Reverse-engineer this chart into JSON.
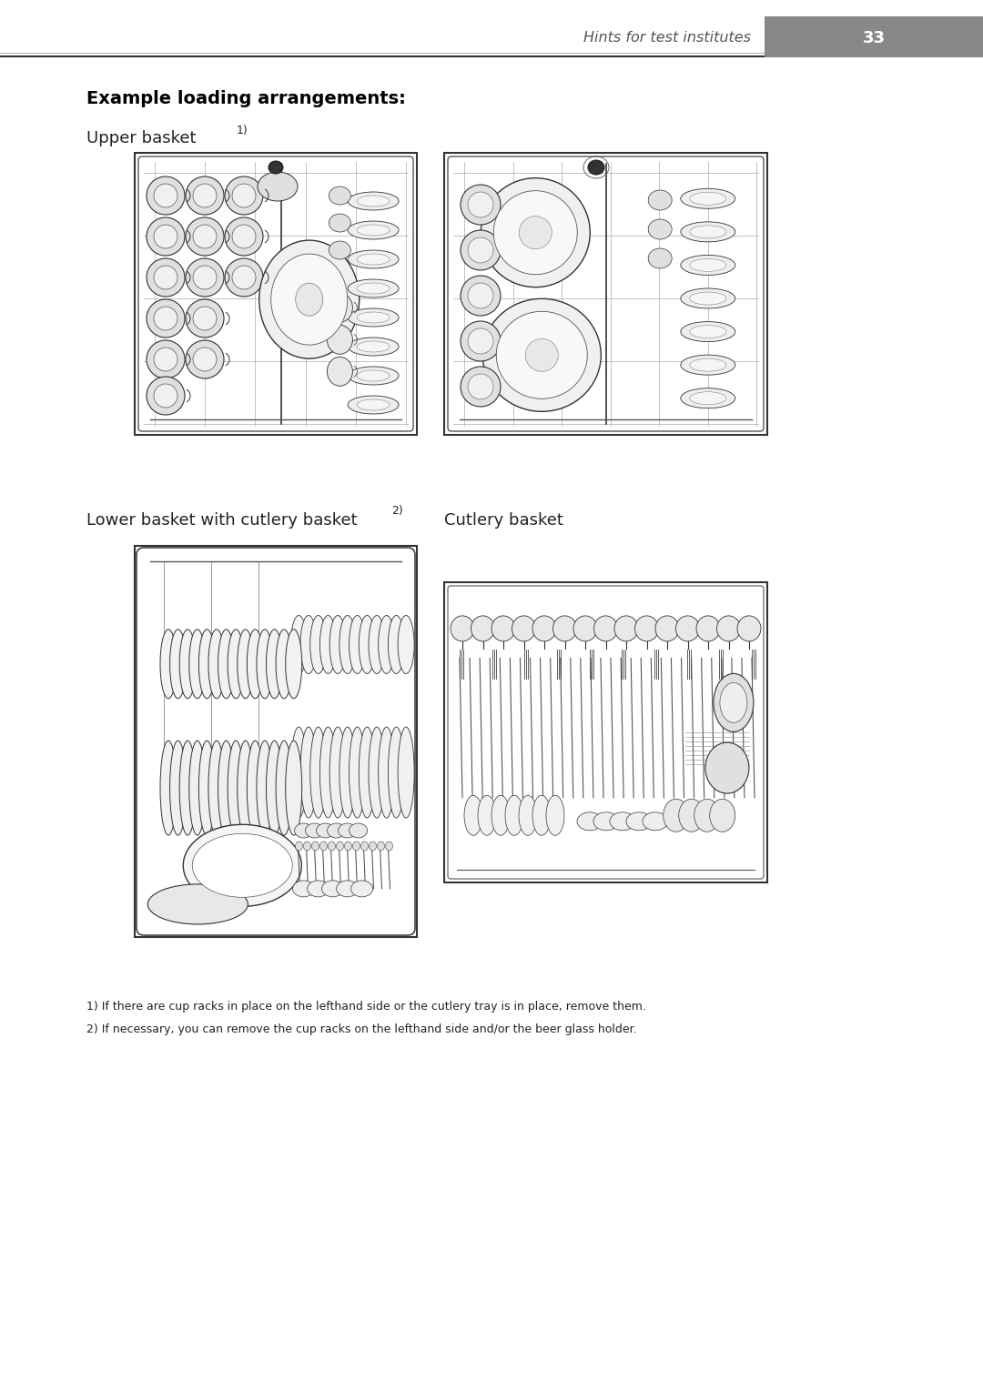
{
  "page_title": "Hints for test institutes",
  "page_number": "33",
  "main_title": "Example loading arrangements:",
  "section1_label": "Upper basket ",
  "section1_superscript": "1)",
  "section2_label": "Lower basket with cutlery basket",
  "section2_superscript": "2)",
  "section3_label": "Cutlery basket",
  "footnote1": "1) If there are cup racks in place on the lefthand side or the cutlery tray is in place, remove them.",
  "footnote2": "2) If necessary, you can remove the cup racks on the lefthand side and/or the beer glass holder.",
  "bg_color": "#ffffff",
  "gray_box": "#888888",
  "line_dark": "#222222",
  "line_med": "#555555",
  "fill_light": "#e8e8e8",
  "fill_mid": "#d0d0d0",
  "fill_white": "#f5f5f5"
}
